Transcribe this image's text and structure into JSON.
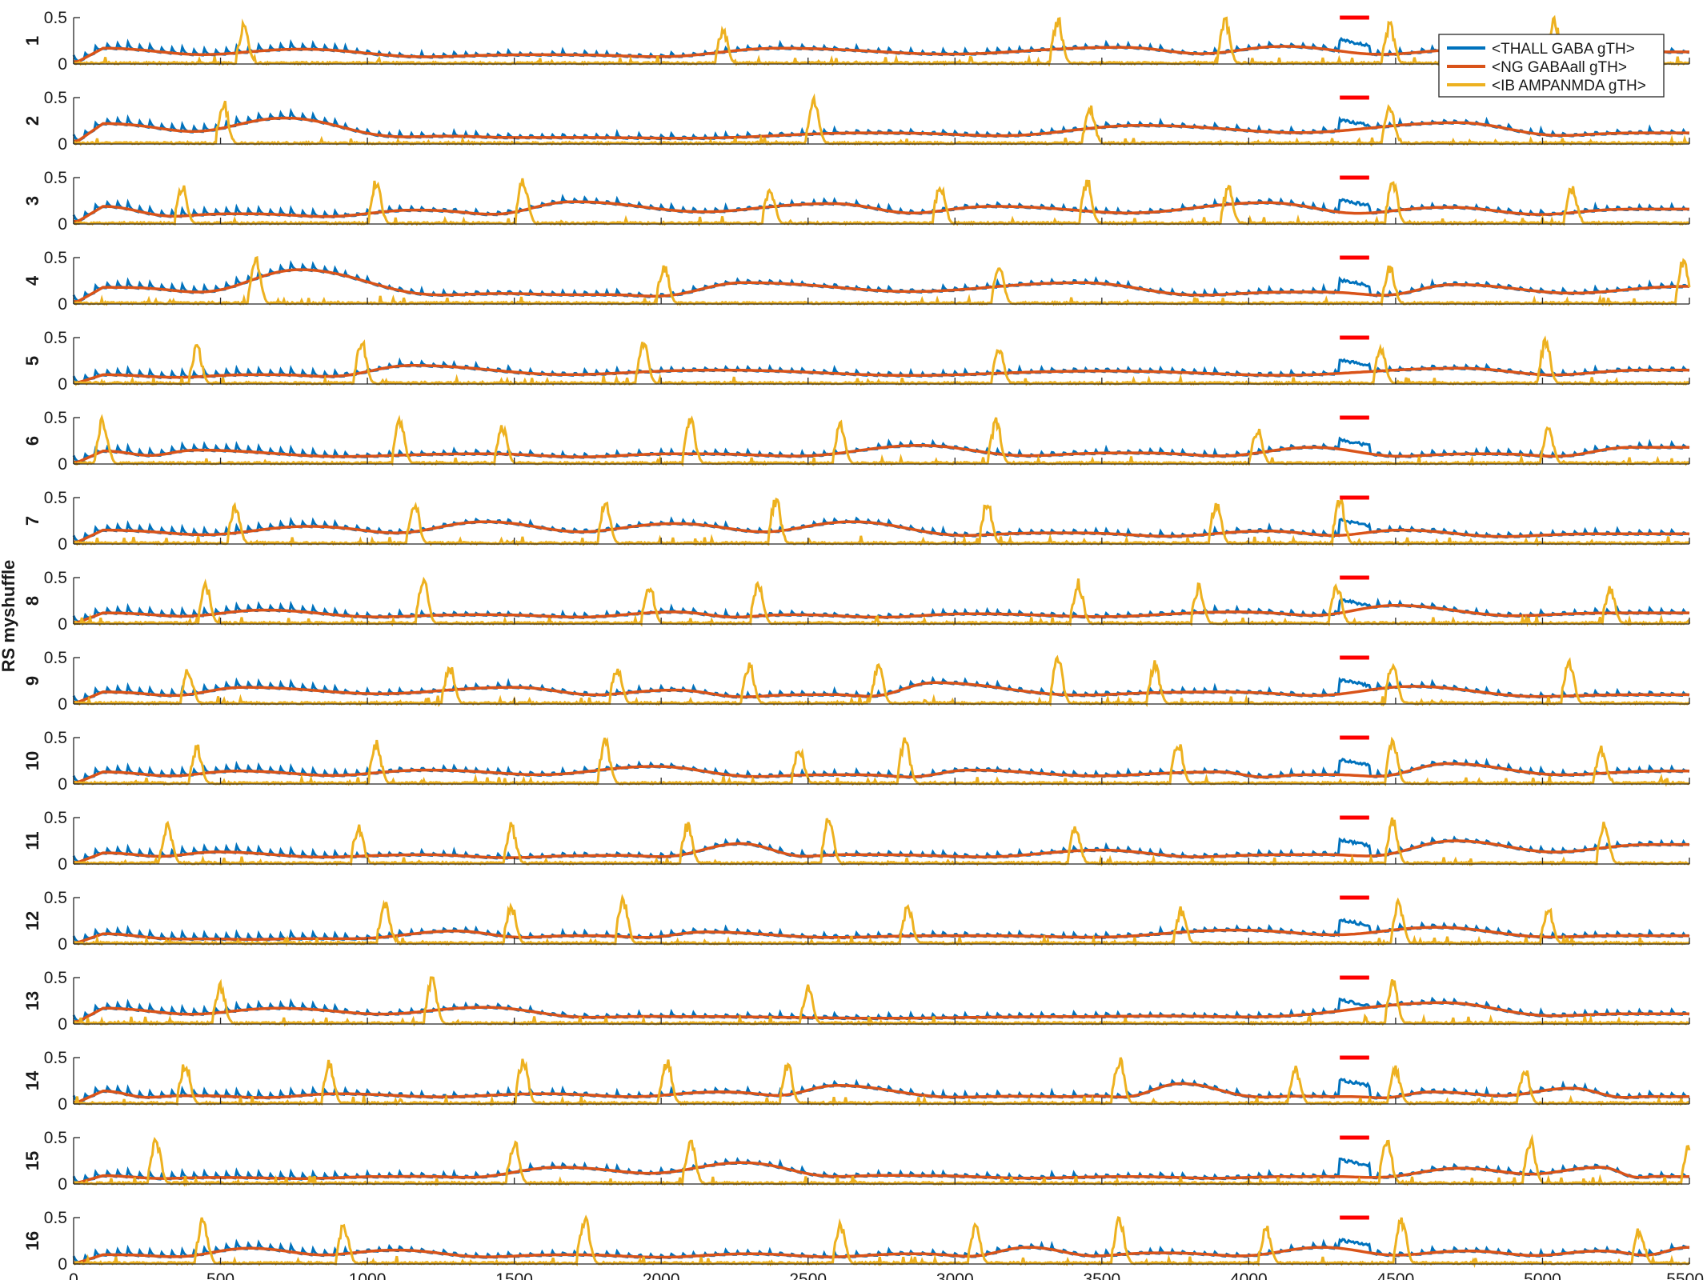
{
  "chart_data": {
    "type": "line",
    "ylabel": "RS myshuffle",
    "rows": [
      "1",
      "2",
      "3",
      "4",
      "5",
      "6",
      "7",
      "8",
      "9",
      "10",
      "11",
      "12",
      "13",
      "14",
      "15",
      "16"
    ],
    "xlim": [
      0,
      5500
    ],
    "x_ticks": [
      0,
      500,
      1000,
      1500,
      2000,
      2500,
      3000,
      3500,
      4000,
      4500,
      5000,
      5500
    ],
    "ylim": [
      0,
      0.5
    ],
    "y_ticks": [
      0,
      0.5
    ],
    "grid": false,
    "legend_position": "top-right",
    "series": [
      {
        "name": "<THALL GABA gTH>",
        "color": "#0072BD"
      },
      {
        "name": "<NG GABAall gTH>",
        "color": "#D95319"
      },
      {
        "name": "<IB AMPANMDA gTH>",
        "color": "#EDB120"
      }
    ],
    "stimulus_marker": {
      "x": [
        4310,
        4410
      ],
      "y": 0.5,
      "color": "#FF0000"
    },
    "ib_bursts": [
      [
        580,
        2210,
        3350,
        3920,
        4480,
        5040
      ],
      [
        510,
        2520,
        3460,
        4480
      ],
      [
        370,
        1030,
        1530,
        2370,
        2950,
        3450,
        3930,
        4490,
        5100
      ],
      [
        620,
        2010,
        3150,
        4480,
        5480
      ],
      [
        420,
        980,
        1940,
        3150,
        4450,
        5010
      ],
      [
        100,
        1110,
        1460,
        2100,
        2610,
        3140,
        4030,
        5020
      ],
      [
        550,
        1160,
        1810,
        2390,
        3110,
        3890,
        4310
      ],
      [
        450,
        1190,
        1960,
        2330,
        3420,
        3830,
        4300,
        5230
      ],
      [
        390,
        1280,
        1850,
        2300,
        2740,
        3350,
        3680,
        4490,
        5090
      ],
      [
        420,
        1030,
        1810,
        2470,
        2830,
        3760,
        4490,
        5200
      ],
      [
        320,
        970,
        1490,
        2090,
        2570,
        3410,
        4490,
        5210
      ],
      [
        1060,
        1490,
        1870,
        2840,
        3770,
        4510,
        5020
      ],
      [
        500,
        1220,
        2500,
        4490
      ],
      [
        380,
        870,
        1530,
        2020,
        2430,
        3560,
        4160,
        4500,
        4940
      ],
      [
        280,
        1500,
        2100,
        4470,
        4960,
        5500
      ],
      [
        440,
        920,
        1740,
        2610,
        3070,
        3560,
        4060,
        4520,
        5330
      ]
    ],
    "ng_peaks": [
      [
        [
          100,
          0.17
        ],
        [
          780,
          0.16
        ],
        [
          1600,
          0.1
        ],
        [
          2400,
          0.17
        ],
        [
          3560,
          0.18
        ],
        [
          4120,
          0.19
        ],
        [
          4780,
          0.16
        ],
        [
          5400,
          0.13
        ]
      ],
      [
        [
          100,
          0.22
        ],
        [
          720,
          0.28
        ],
        [
          1500,
          0.07
        ],
        [
          2700,
          0.12
        ],
        [
          3630,
          0.2
        ],
        [
          4710,
          0.23
        ],
        [
          5400,
          0.12
        ]
      ],
      [
        [
          100,
          0.19
        ],
        [
          570,
          0.11
        ],
        [
          1160,
          0.15
        ],
        [
          1700,
          0.24
        ],
        [
          2580,
          0.22
        ],
        [
          3130,
          0.19
        ],
        [
          4060,
          0.23
        ],
        [
          4680,
          0.18
        ],
        [
          5300,
          0.16
        ]
      ],
      [
        [
          100,
          0.18
        ],
        [
          770,
          0.37
        ],
        [
          1700,
          0.1
        ],
        [
          2280,
          0.23
        ],
        [
          3430,
          0.23
        ],
        [
          4220,
          0.13
        ],
        [
          4700,
          0.21
        ],
        [
          5500,
          0.19
        ]
      ],
      [
        [
          100,
          0.1
        ],
        [
          600,
          0.1
        ],
        [
          1150,
          0.2
        ],
        [
          2200,
          0.15
        ],
        [
          3500,
          0.14
        ],
        [
          4720,
          0.17
        ],
        [
          5350,
          0.15
        ]
      ],
      [
        [
          100,
          0.14
        ],
        [
          420,
          0.15
        ],
        [
          1400,
          0.11
        ],
        [
          2050,
          0.11
        ],
        [
          2880,
          0.2
        ],
        [
          3600,
          0.12
        ],
        [
          4220,
          0.18
        ],
        [
          4800,
          0.11
        ],
        [
          5300,
          0.18
        ]
      ],
      [
        [
          100,
          0.15
        ],
        [
          800,
          0.19
        ],
        [
          1400,
          0.24
        ],
        [
          2050,
          0.22
        ],
        [
          2650,
          0.24
        ],
        [
          3400,
          0.12
        ],
        [
          4060,
          0.14
        ],
        [
          4520,
          0.15
        ],
        [
          5200,
          0.11
        ]
      ],
      [
        [
          100,
          0.12
        ],
        [
          650,
          0.15
        ],
        [
          1400,
          0.1
        ],
        [
          2050,
          0.13
        ],
        [
          2450,
          0.1
        ],
        [
          3050,
          0.11
        ],
        [
          3950,
          0.13
        ],
        [
          4500,
          0.2
        ],
        [
          5300,
          0.12
        ]
      ],
      [
        [
          100,
          0.13
        ],
        [
          580,
          0.18
        ],
        [
          1500,
          0.18
        ],
        [
          2050,
          0.15
        ],
        [
          2500,
          0.1
        ],
        [
          2930,
          0.23
        ],
        [
          3900,
          0.13
        ],
        [
          4560,
          0.19
        ],
        [
          5400,
          0.1
        ]
      ],
      [
        [
          100,
          0.13
        ],
        [
          560,
          0.14
        ],
        [
          1200,
          0.15
        ],
        [
          1980,
          0.19
        ],
        [
          2650,
          0.1
        ],
        [
          3050,
          0.15
        ],
        [
          3900,
          0.13
        ],
        [
          4200,
          0.1
        ],
        [
          4680,
          0.22
        ],
        [
          5450,
          0.14
        ]
      ],
      [
        [
          100,
          0.12
        ],
        [
          490,
          0.13
        ],
        [
          1200,
          0.1
        ],
        [
          1750,
          0.09
        ],
        [
          2270,
          0.22
        ],
        [
          2700,
          0.1
        ],
        [
          3500,
          0.15
        ],
        [
          4130,
          0.1
        ],
        [
          4700,
          0.25
        ],
        [
          5380,
          0.21
        ]
      ],
      [
        [
          100,
          0.11
        ],
        [
          600,
          0.05
        ],
        [
          1300,
          0.14
        ],
        [
          1750,
          0.09
        ],
        [
          2150,
          0.13
        ],
        [
          3000,
          0.09
        ],
        [
          3950,
          0.15
        ],
        [
          4640,
          0.18
        ],
        [
          5400,
          0.09
        ]
      ],
      [
        [
          100,
          0.17
        ],
        [
          700,
          0.17
        ],
        [
          1400,
          0.18
        ],
        [
          2100,
          0.08
        ],
        [
          3400,
          0.08
        ],
        [
          4660,
          0.23
        ],
        [
          5400,
          0.11
        ]
      ],
      [
        [
          100,
          0.14
        ],
        [
          400,
          0.09
        ],
        [
          900,
          0.11
        ],
        [
          1600,
          0.11
        ],
        [
          2200,
          0.13
        ],
        [
          2600,
          0.2
        ],
        [
          3380,
          0.08
        ],
        [
          3770,
          0.22
        ],
        [
          4300,
          0.08
        ],
        [
          4620,
          0.13
        ],
        [
          5100,
          0.17
        ],
        [
          5450,
          0.08
        ]
      ],
      [
        [
          100,
          0.09
        ],
        [
          500,
          0.07
        ],
        [
          1050,
          0.08
        ],
        [
          1650,
          0.18
        ],
        [
          2280,
          0.23
        ],
        [
          2900,
          0.09
        ],
        [
          3600,
          0.08
        ],
        [
          4150,
          0.08
        ],
        [
          4720,
          0.17
        ],
        [
          5200,
          0.18
        ],
        [
          5450,
          0.08
        ]
      ],
      [
        [
          100,
          0.1
        ],
        [
          600,
          0.17
        ],
        [
          1100,
          0.15
        ],
        [
          1700,
          0.1
        ],
        [
          2300,
          0.11
        ],
        [
          2850,
          0.11
        ],
        [
          3250,
          0.18
        ],
        [
          3700,
          0.12
        ],
        [
          4250,
          0.18
        ],
        [
          4750,
          0.14
        ],
        [
          5200,
          0.14
        ],
        [
          5500,
          0.18
        ]
      ]
    ]
  }
}
